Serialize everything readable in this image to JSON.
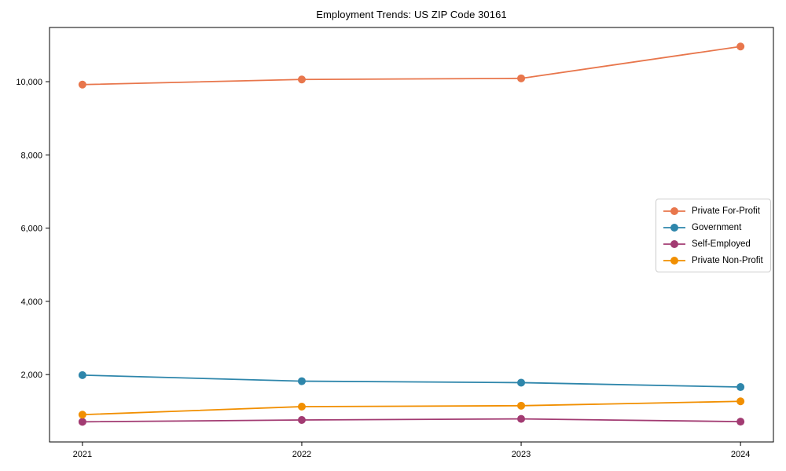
{
  "figure": {
    "background_color": "#ffffff",
    "axes_color": "#000000"
  },
  "chart_data": {
    "type": "line",
    "title": "Employment Trends: US ZIP Code 30161",
    "xlabel": "",
    "ylabel": "",
    "x": [
      2021,
      2022,
      2023,
      2024
    ],
    "x_tick_labels": [
      "2021",
      "2022",
      "2023",
      "2024"
    ],
    "y_ticks": [
      2000,
      4000,
      6000,
      8000,
      10000
    ],
    "y_tick_labels": [
      "2,000",
      "4,000",
      "6,000",
      "8,000",
      "10,000"
    ],
    "xlim": [
      2020.85,
      2024.15
    ],
    "ylim": [
      160,
      11480
    ],
    "grid": false,
    "legend_position": "center right",
    "marker": "circle",
    "series": [
      {
        "name": "Private For-Profit",
        "color": "#E8764C",
        "values": [
          9920,
          10060,
          10090,
          10960
        ]
      },
      {
        "name": "Government",
        "color": "#2E86AB",
        "values": [
          1985,
          1820,
          1780,
          1660
        ]
      },
      {
        "name": "Self-Employed",
        "color": "#A23B72",
        "values": [
          710,
          760,
          790,
          715
        ]
      },
      {
        "name": "Private Non-Profit",
        "color": "#F18F01",
        "values": [
          905,
          1125,
          1150,
          1270
        ]
      }
    ]
  }
}
